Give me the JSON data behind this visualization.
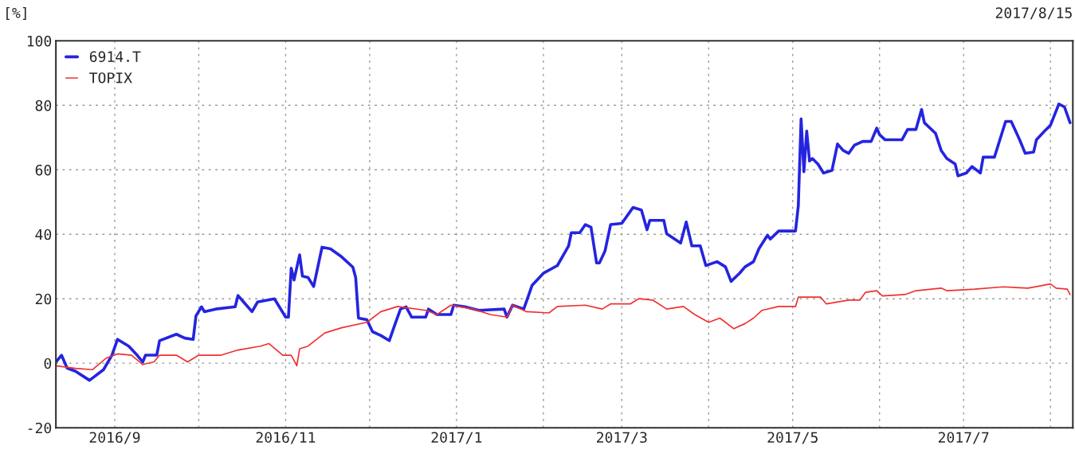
{
  "chart_data": {
    "type": "line",
    "title": "2017/8/15",
    "ylabel": "[%]",
    "xlim": [
      "2016-08-11",
      "2017-08-09"
    ],
    "xticks": [
      {
        "value": "2016-09-01",
        "label": "2016/9"
      },
      {
        "value": "2016-10-01",
        "label": null
      },
      {
        "value": "2016-11-01",
        "label": "2016/11"
      },
      {
        "value": "2016-12-01",
        "label": null
      },
      {
        "value": "2017-01-01",
        "label": "2017/1"
      },
      {
        "value": "2017-02-01",
        "label": null
      },
      {
        "value": "2017-03-01",
        "label": "2017/3"
      },
      {
        "value": "2017-04-01",
        "label": null
      },
      {
        "value": "2017-05-01",
        "label": "2017/5"
      },
      {
        "value": "2017-06-01",
        "label": null
      },
      {
        "value": "2017-07-01",
        "label": "2017/7"
      },
      {
        "value": "2017-08-01",
        "label": null
      }
    ],
    "ylim": [
      -20,
      100
    ],
    "yticks": [
      -20,
      0,
      20,
      40,
      60,
      80,
      100
    ],
    "grid": true,
    "legend": "top left",
    "line_style": "solid",
    "marker": "none",
    "series": [
      {
        "name": "6914.T",
        "color": "#2424e0",
        "x": [
          "2016-08-11",
          "2016-08-13",
          "2016-08-15",
          "2016-08-18",
          "2016-08-23",
          "2016-08-28",
          "2016-08-31",
          "2016-09-02",
          "2016-09-06",
          "2016-09-09",
          "2016-09-11",
          "2016-09-12",
          "2016-09-16",
          "2016-09-17",
          "2016-09-23",
          "2016-09-26",
          "2016-09-29",
          "2016-09-30",
          "2016-10-02",
          "2016-10-03",
          "2016-10-07",
          "2016-10-14",
          "2016-10-15",
          "2016-10-17",
          "2016-10-20",
          "2016-10-22",
          "2016-10-28",
          "2016-11-01",
          "2016-11-02",
          "2016-11-03",
          "2016-11-04",
          "2016-11-06",
          "2016-11-07",
          "2016-11-09",
          "2016-11-11",
          "2016-11-14",
          "2016-11-17",
          "2016-11-21",
          "2016-11-25",
          "2016-11-26",
          "2016-11-27",
          "2016-11-30",
          "2016-12-02",
          "2016-12-05",
          "2016-12-08",
          "2016-12-10",
          "2016-12-12",
          "2016-12-14",
          "2016-12-16",
          "2016-12-21",
          "2016-12-22",
          "2016-12-25",
          "2016-12-30",
          "2016-12-31",
          "2017-01-04",
          "2017-01-09",
          "2017-01-18",
          "2017-01-19",
          "2017-01-21",
          "2017-01-25",
          "2017-01-28",
          "2017-02-01",
          "2017-02-06",
          "2017-02-10",
          "2017-02-11",
          "2017-02-14",
          "2017-02-16",
          "2017-02-18",
          "2017-02-20",
          "2017-02-21",
          "2017-02-23",
          "2017-02-25",
          "2017-03-01",
          "2017-03-05",
          "2017-03-08",
          "2017-03-10",
          "2017-03-11",
          "2017-03-16",
          "2017-03-17",
          "2017-03-22",
          "2017-03-24",
          "2017-03-26",
          "2017-03-29",
          "2017-03-31",
          "2017-04-04",
          "2017-04-07",
          "2017-04-09",
          "2017-04-12",
          "2017-04-14",
          "2017-04-17",
          "2017-04-19",
          "2017-04-22",
          "2017-04-23",
          "2017-04-26",
          "2017-05-02",
          "2017-05-03",
          "2017-05-04",
          "2017-05-05",
          "2017-05-06",
          "2017-05-07",
          "2017-05-08",
          "2017-05-10",
          "2017-05-12",
          "2017-05-15",
          "2017-05-17",
          "2017-05-19",
          "2017-05-21",
          "2017-05-23",
          "2017-05-26",
          "2017-05-29",
          "2017-05-31",
          "2017-06-01",
          "2017-06-03",
          "2017-06-09",
          "2017-06-11",
          "2017-06-14",
          "2017-06-16",
          "2017-06-17",
          "2017-06-21",
          "2017-06-23",
          "2017-06-25",
          "2017-06-28",
          "2017-06-29",
          "2017-07-02",
          "2017-07-04",
          "2017-07-07",
          "2017-07-08",
          "2017-07-12",
          "2017-07-16",
          "2017-07-18",
          "2017-07-21",
          "2017-07-23",
          "2017-07-26",
          "2017-07-27",
          "2017-07-30",
          "2017-08-01",
          "2017-08-04",
          "2017-08-06",
          "2017-08-08"
        ],
        "values": [
          0.4,
          2.5,
          -1.5,
          -2.5,
          -5.3,
          -2,
          2.5,
          7.4,
          5.3,
          2.5,
          0.4,
          2.5,
          2.5,
          7,
          9,
          7.8,
          7.4,
          14.7,
          17.5,
          16,
          16.8,
          17.5,
          21,
          19,
          16,
          19,
          20,
          14.3,
          14.3,
          29.5,
          25.8,
          33.6,
          27,
          26.6,
          23.8,
          36,
          35.5,
          33,
          29.8,
          26.6,
          14,
          13.5,
          9.8,
          8.6,
          7,
          12,
          16.8,
          17.5,
          14.3,
          14.3,
          16.8,
          15.1,
          15.1,
          18,
          17.5,
          16.4,
          16.8,
          14.3,
          18,
          16.8,
          24.2,
          27.9,
          30.3,
          36.4,
          40.5,
          40.5,
          43,
          42.2,
          31.1,
          31.1,
          34.8,
          43,
          43.4,
          48.3,
          47.5,
          41.4,
          44.3,
          44.3,
          40.2,
          37.3,
          43.8,
          36.4,
          36.4,
          30.3,
          31.5,
          29.9,
          25.4,
          27.9,
          29.9,
          31.5,
          35.6,
          39.7,
          38.5,
          41,
          41,
          48.8,
          75.8,
          59.4,
          72,
          62.7,
          63.5,
          61.8,
          59,
          59.8,
          68,
          66,
          65.1,
          67.6,
          68.8,
          68.8,
          72.9,
          70.9,
          69.3,
          69.3,
          72.5,
          72.5,
          78.7,
          74.6,
          71.3,
          66,
          63.5,
          61.8,
          58.1,
          59,
          61,
          59,
          63.9,
          63.9,
          75,
          75,
          69.3,
          65.1,
          65.5,
          69.3,
          72.1,
          73.8,
          80.4,
          79.5,
          74.6
        ]
      },
      {
        "name": "TOPIX",
        "color": "#f03030",
        "x": [
          "2016-08-11",
          "2016-08-18",
          "2016-08-24",
          "2016-08-29",
          "2016-09-02",
          "2016-09-07",
          "2016-09-11",
          "2016-09-15",
          "2016-09-17",
          "2016-09-23",
          "2016-09-27",
          "2016-10-01",
          "2016-10-09",
          "2016-10-15",
          "2016-10-23",
          "2016-10-26",
          "2016-10-31",
          "2016-11-03",
          "2016-11-05",
          "2016-11-06",
          "2016-11-09",
          "2016-11-15",
          "2016-11-21",
          "2016-11-30",
          "2016-12-05",
          "2016-12-11",
          "2016-12-21",
          "2016-12-25",
          "2016-12-30",
          "2017-01-07",
          "2017-01-13",
          "2017-01-19",
          "2017-01-21",
          "2017-01-26",
          "2017-02-03",
          "2017-02-06",
          "2017-02-16",
          "2017-02-22",
          "2017-02-25",
          "2017-03-04",
          "2017-03-07",
          "2017-03-12",
          "2017-03-17",
          "2017-03-23",
          "2017-03-27",
          "2017-04-01",
          "2017-04-05",
          "2017-04-10",
          "2017-04-14",
          "2017-04-17",
          "2017-04-20",
          "2017-04-26",
          "2017-05-02",
          "2017-05-03",
          "2017-05-11",
          "2017-05-13",
          "2017-05-21",
          "2017-05-25",
          "2017-05-27",
          "2017-05-31",
          "2017-06-02",
          "2017-06-10",
          "2017-06-14",
          "2017-06-23",
          "2017-06-25",
          "2017-07-05",
          "2017-07-15",
          "2017-07-24",
          "2017-08-01",
          "2017-08-03",
          "2017-08-07",
          "2017-08-08"
        ],
        "values": [
          -0.8,
          -1.6,
          -2,
          1.6,
          2.9,
          2.5,
          -0.4,
          0.4,
          2.5,
          2.5,
          0.4,
          2.5,
          2.5,
          4.1,
          5.3,
          6.1,
          2.5,
          2.5,
          -0.8,
          4.5,
          5.3,
          9.4,
          11,
          12.7,
          16,
          17.6,
          16.4,
          15.1,
          18,
          16.8,
          15.1,
          14.3,
          18,
          16,
          15.6,
          17.6,
          18,
          16.8,
          18.4,
          18.4,
          20,
          19.6,
          16.8,
          17.6,
          15.1,
          12.7,
          14,
          10.7,
          12.3,
          14,
          16.4,
          17.6,
          17.6,
          20.5,
          20.5,
          18.4,
          19.6,
          19.6,
          22,
          22.5,
          20.9,
          21.3,
          22.5,
          23.3,
          22.5,
          23,
          23.7,
          23.3,
          24.6,
          23.3,
          23,
          21.3
        ]
      }
    ]
  }
}
